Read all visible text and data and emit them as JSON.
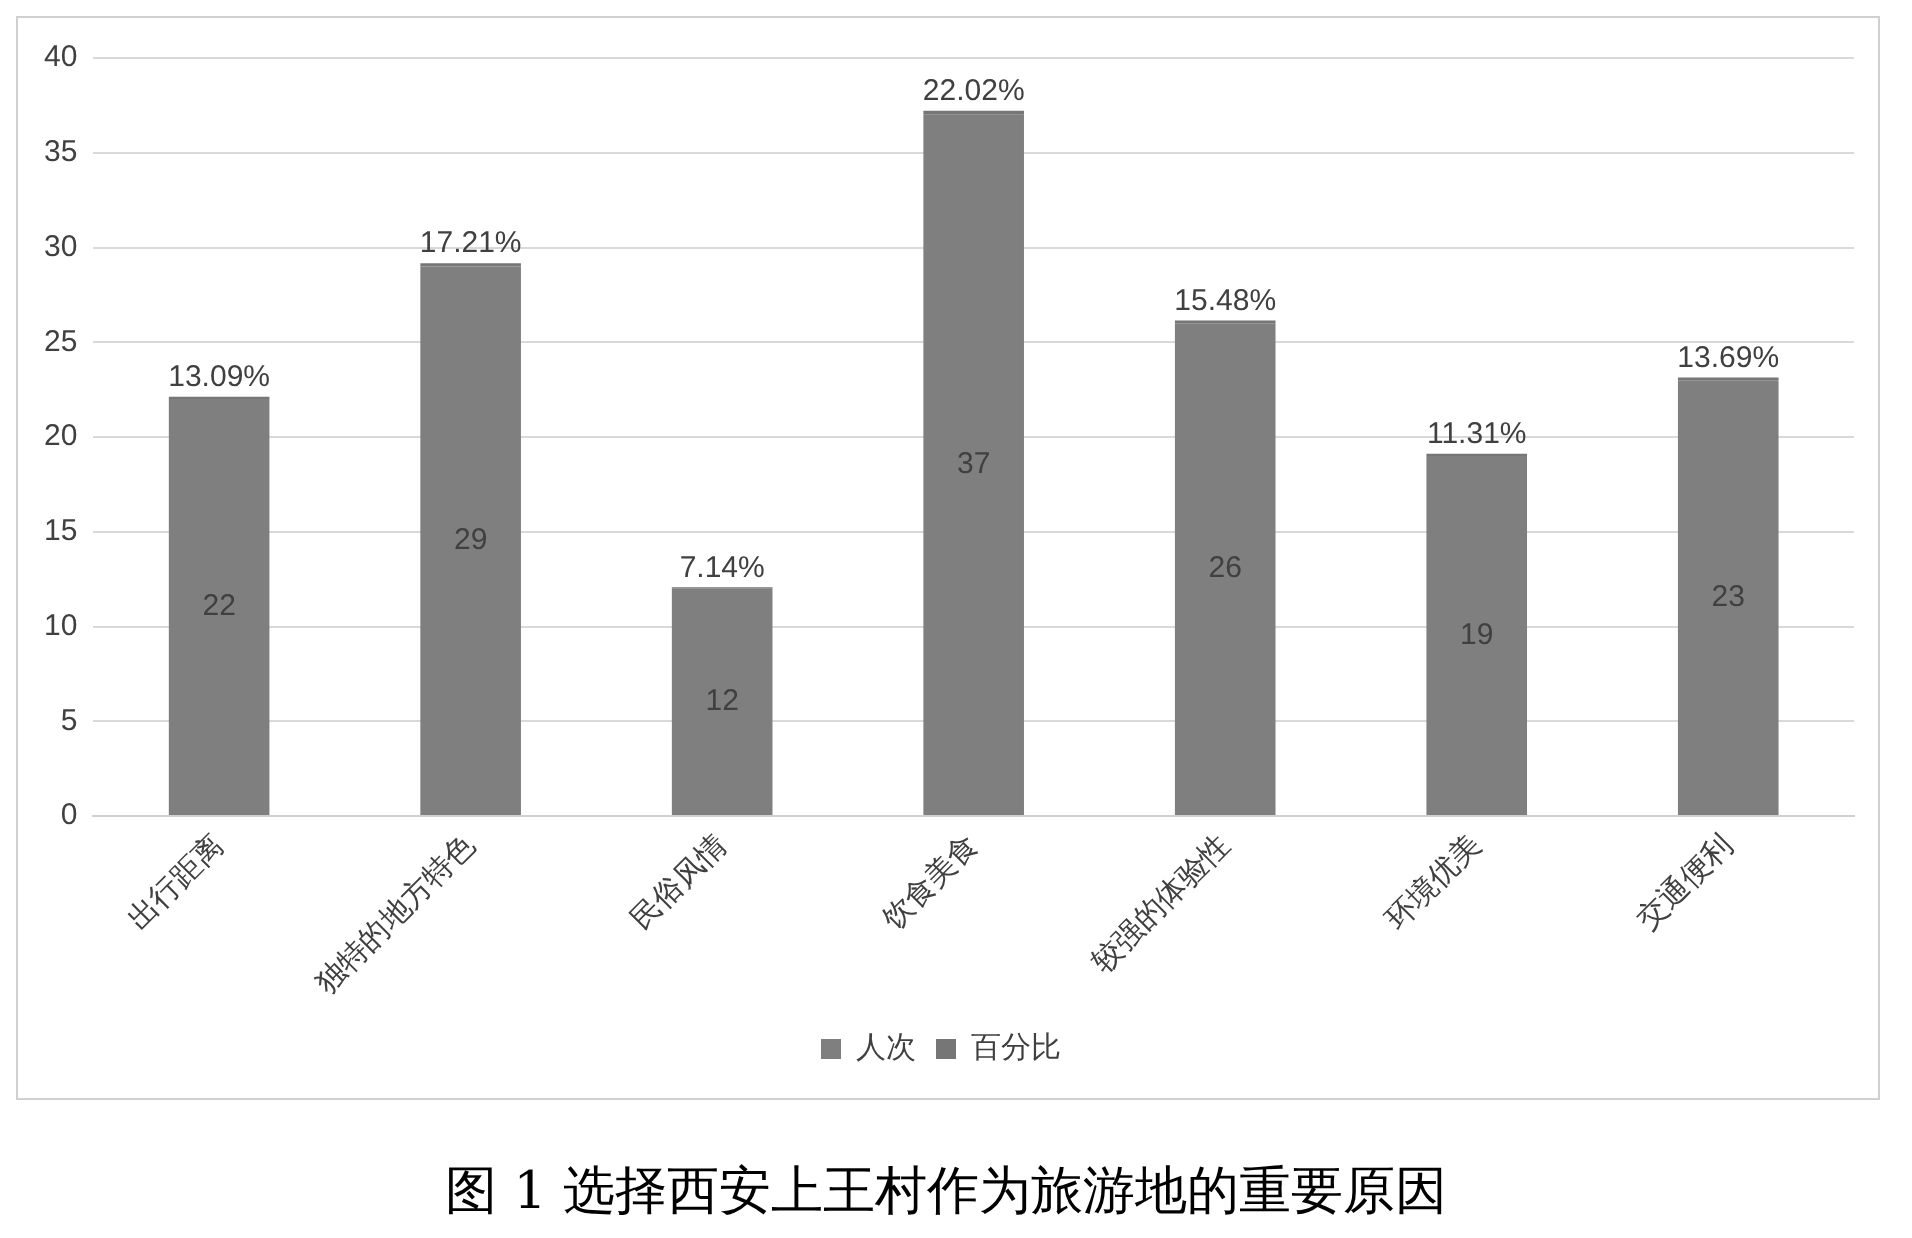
{
  "chart_data": {
    "type": "bar",
    "title": "图 1 选择西安上王村作为旅游地的重要原因",
    "categories": [
      "出行距离",
      "独特的地方特色",
      "民俗风情",
      "饮食美食",
      "较强的体验性",
      "环境优美",
      "交通便利"
    ],
    "series": [
      {
        "name": "人次",
        "color": "#7f7f7f",
        "values": [
          22,
          29,
          12,
          37,
          26,
          19,
          23
        ],
        "value_labels": [
          "22",
          "29",
          "12",
          "37",
          "26",
          "19",
          "23"
        ]
      },
      {
        "name": "百分比",
        "color": "#767676",
        "values": [
          0.1309,
          0.1721,
          0.0714,
          0.2202,
          0.1548,
          0.1131,
          0.1369
        ],
        "value_labels": [
          "13.09%",
          "17.21%",
          "7.14%",
          "22.02%",
          "15.48%",
          "11.31%",
          "13.69%"
        ]
      }
    ],
    "stacked": true,
    "ylim": [
      0,
      40
    ],
    "yticks": [
      0,
      5,
      10,
      15,
      20,
      25,
      30,
      35,
      40
    ],
    "grid": "y",
    "legend": "bottom"
  }
}
